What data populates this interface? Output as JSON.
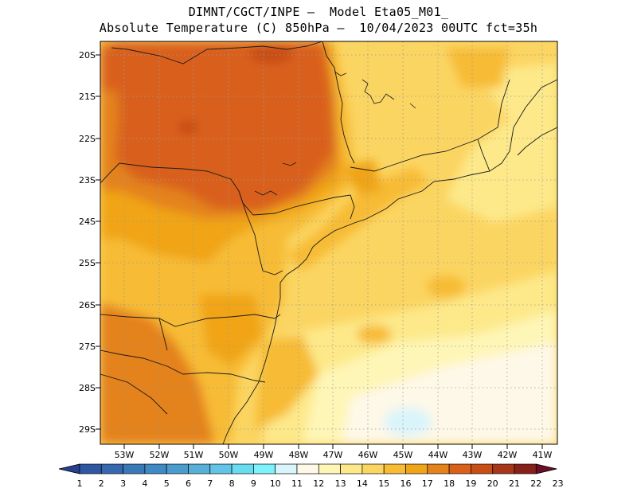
{
  "title": {
    "line1": "DIMNT/CGCT/INPE –  Model Eta05_M01_",
    "line2": "Absolute Temperature (C) 850hPa –  10/04/2023 00UTC fct=35h"
  },
  "map": {
    "lat_labels": [
      "20S",
      "21S",
      "22S",
      "23S",
      "24S",
      "25S",
      "26S",
      "27S",
      "28S",
      "29S"
    ],
    "lon_labels": [
      "53W",
      "52W",
      "51W",
      "50W",
      "49W",
      "48W",
      "47W",
      "46W",
      "45W",
      "44W",
      "43W",
      "42W",
      "41W"
    ],
    "lon_range": [
      -53.7,
      -40.6
    ],
    "lat_range": [
      -29.4,
      -19.8
    ],
    "gridlines": "dotted"
  },
  "colorbar": {
    "labels": [
      "1",
      "2",
      "3",
      "4",
      "5",
      "6",
      "7",
      "8",
      "9",
      "10",
      "11",
      "12",
      "13",
      "14",
      "15",
      "16",
      "17",
      "18",
      "19",
      "20",
      "21",
      "22",
      "23"
    ],
    "colors": [
      "#263f8f",
      "#2f56a2",
      "#3568ae",
      "#3a79b8",
      "#3f8ac2",
      "#4a9ccd",
      "#58b0d9",
      "#62c4e6",
      "#6adcf0",
      "#7df2fd",
      "#d9f4fb",
      "#fef8e8",
      "#fef6b6",
      "#fde98a",
      "#fbd562",
      "#f7bb34",
      "#f0a418",
      "#e4821c",
      "#d9611a",
      "#c84e14",
      "#a8371a",
      "#86201a",
      "#6a0f25"
    ]
  }
}
